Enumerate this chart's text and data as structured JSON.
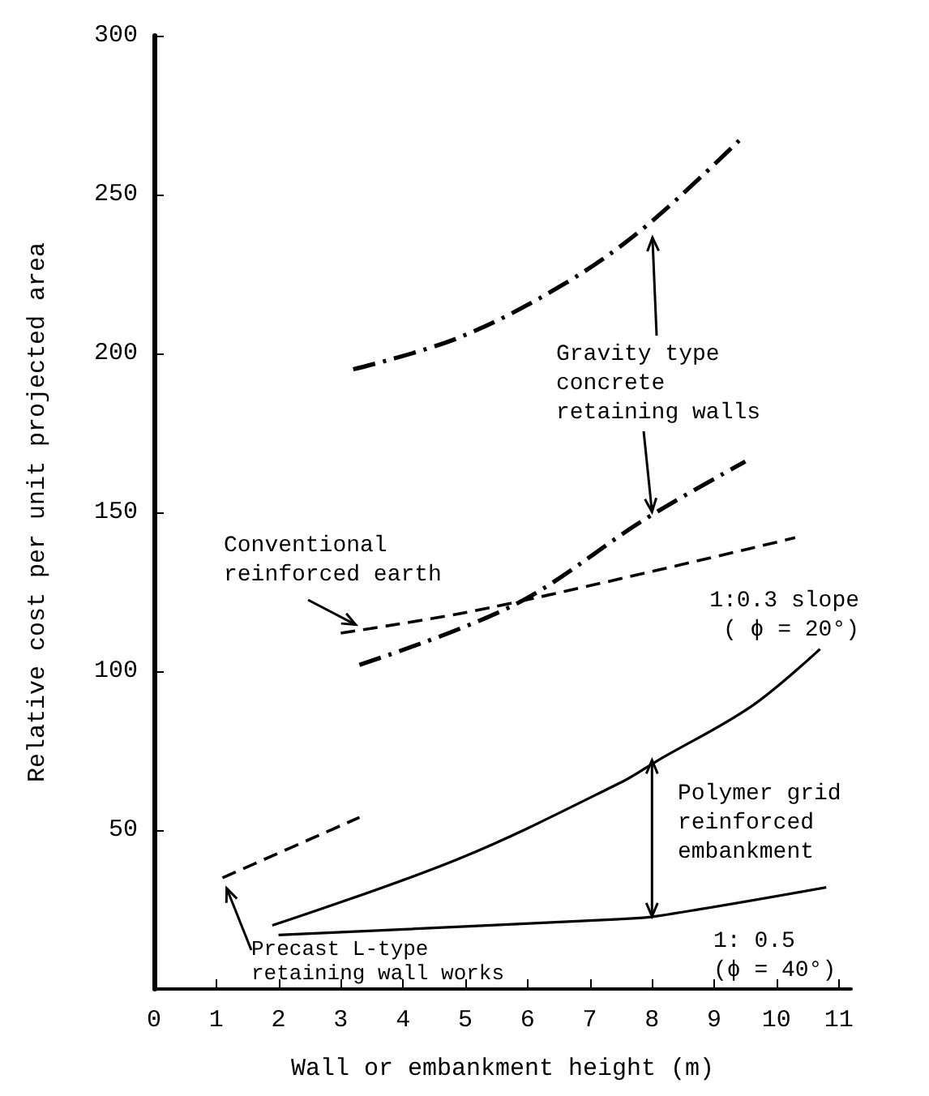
{
  "chart_data": {
    "type": "line",
    "xlabel": "Wall or embankment height (m)",
    "ylabel": "Relative cost per unit projected area",
    "xlim": [
      0,
      11.2
    ],
    "xticks": [
      0,
      1,
      2,
      3,
      4,
      5,
      6,
      7,
      8,
      9,
      10,
      11
    ],
    "ylim": [
      0,
      300
    ],
    "yticks": [
      50,
      100,
      150,
      200,
      250,
      300
    ],
    "series": [
      {
        "color": "#000000",
        "line_style": "dashdot",
        "x": [
          3.2,
          4.9,
          6.6,
          7.9,
          9.4
        ],
        "values": [
          195,
          205,
          222,
          240,
          267
        ]
      },
      {
        "color": "#000000",
        "line_style": "dashdot",
        "x": [
          3.3,
          5.8,
          7.9,
          9.5
        ],
        "values": [
          102,
          121,
          148,
          166
        ]
      },
      {
        "color": "#000000",
        "line_style": "dashed",
        "x": [
          3.0,
          5.4,
          10.3
        ],
        "values": [
          112,
          120,
          142
        ]
      },
      {
        "color": "#000000",
        "line_style": "dashed",
        "x": [
          1.1,
          3.3
        ],
        "values": [
          35,
          54
        ]
      },
      {
        "color": "#000000",
        "line_style": "solid",
        "x": [
          1.9,
          4.9,
          7.5,
          8.1,
          9.6,
          10.7
        ],
        "values": [
          20,
          41,
          65,
          72,
          89,
          107
        ]
      },
      {
        "color": "#000000",
        "line_style": "solid",
        "x": [
          2.0,
          7.5,
          8.1,
          10.8
        ],
        "values": [
          17,
          22,
          23,
          32
        ]
      }
    ],
    "annotations": [
      {
        "text": "Gravity type concrete retaining walls",
        "x": 8,
        "y": 240
      },
      {
        "text": "Conventional reinforced earth",
        "x": 3.4,
        "y": 113
      },
      {
        "text": "Precast L-type retaining wall works",
        "x": 1.1,
        "y": 35
      },
      "1:0.3 slope ( ϕ = 20°)",
      "1: 0.5 (ϕ = 40°)",
      {
        "text": "Polymer grid reinforced embankment",
        "x": 8,
        "y": 72
      }
    ]
  }
}
